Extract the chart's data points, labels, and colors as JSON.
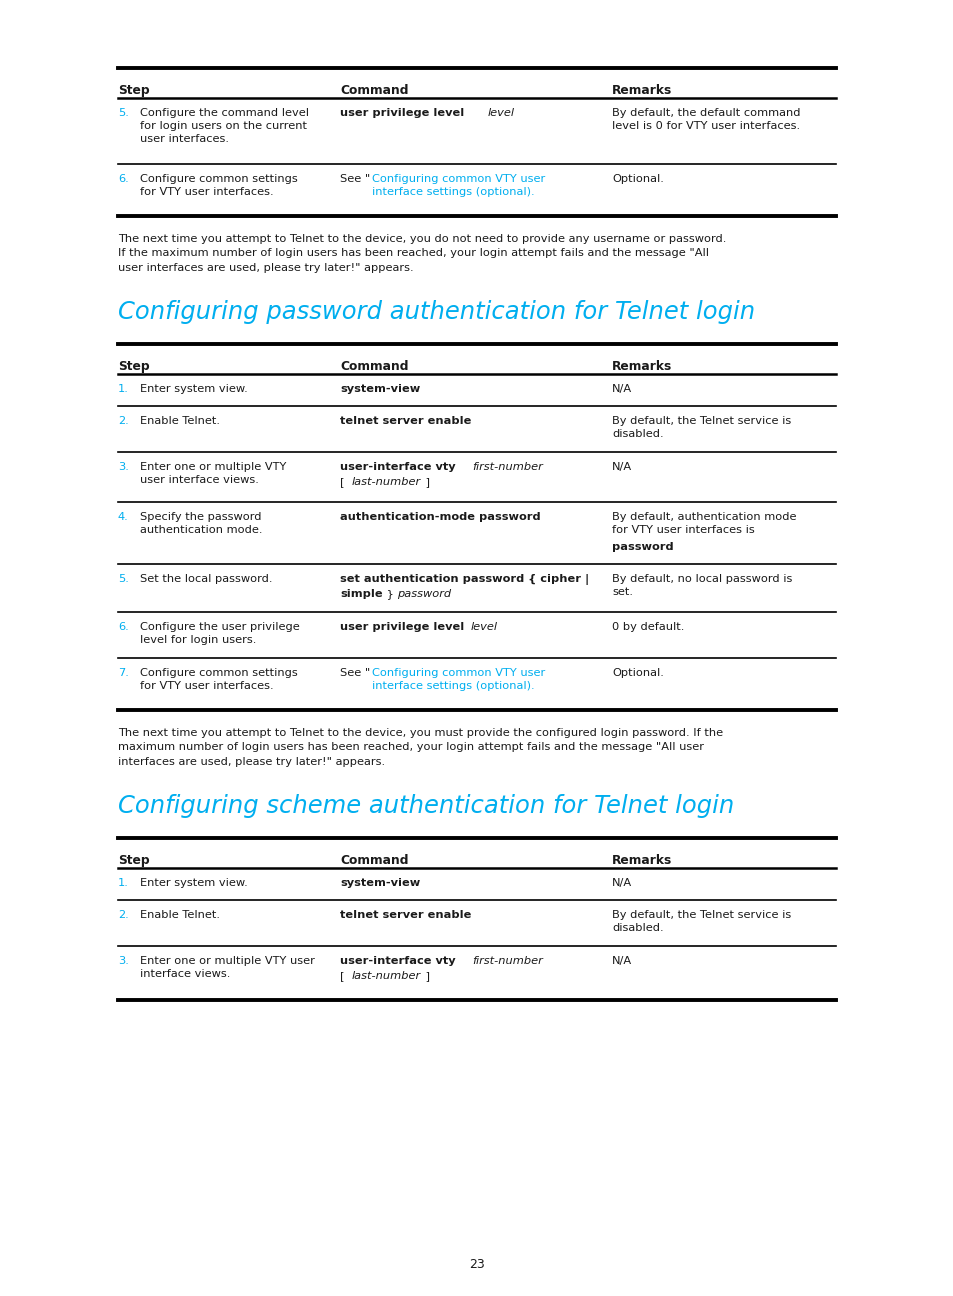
{
  "bg_color": "#ffffff",
  "text_color": "#1a1a1a",
  "cyan_color": "#00aeef",
  "page_number": "23",
  "section1_title": "Configuring password authentication for Telnet login",
  "section2_title": "Configuring scheme authentication for Telnet login"
}
